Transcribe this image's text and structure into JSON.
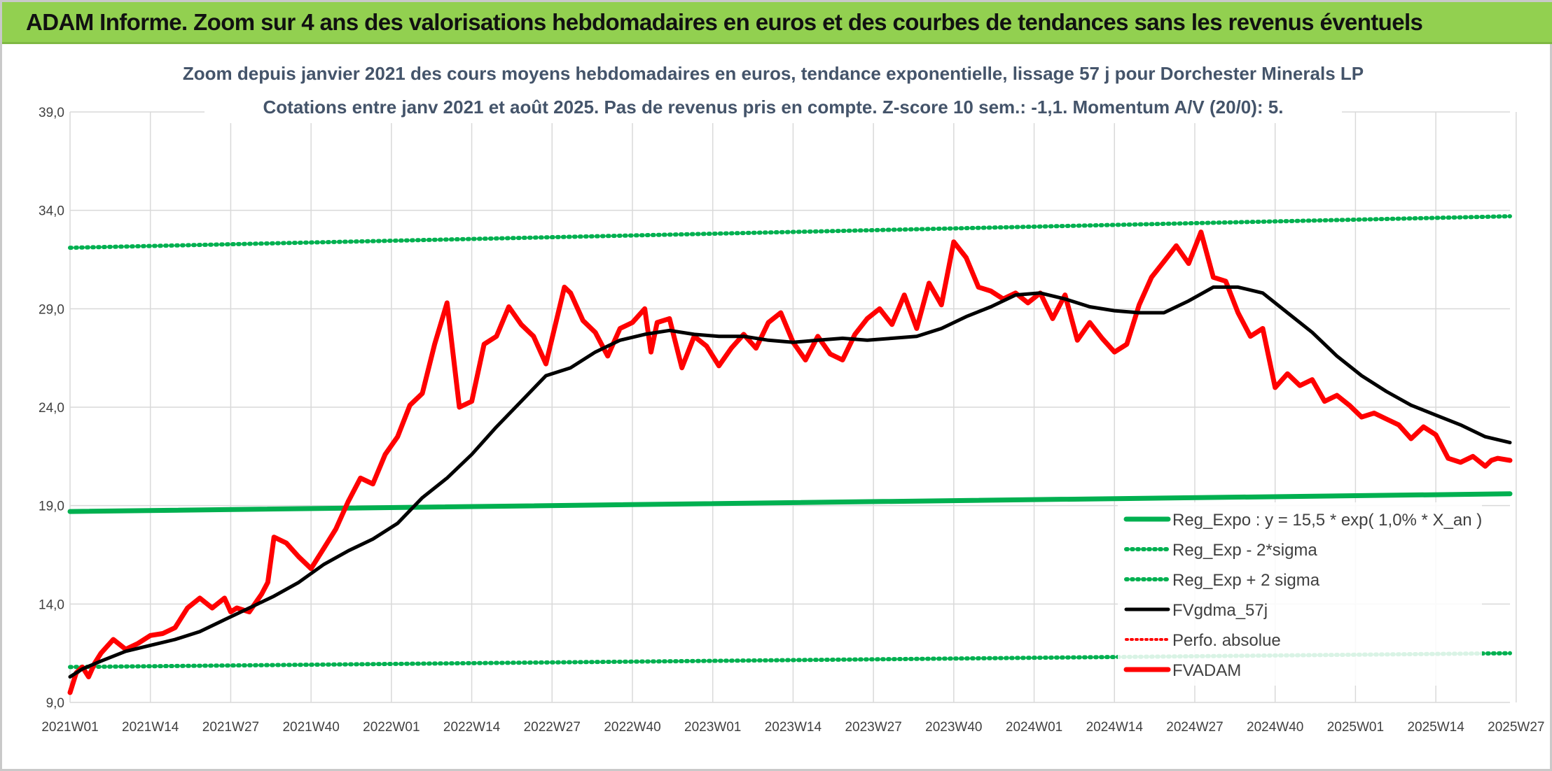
{
  "header": {
    "title": "ADAM Informe. Zoom sur 4 ans des valorisations hebdomadaires en euros et des courbes de tendances sans les revenus éventuels"
  },
  "colors": {
    "banner": "#92d050",
    "green": "#00b050",
    "black": "#000000",
    "red": "#ff0000",
    "grid": "#d9d9d9"
  },
  "chart_data": {
    "type": "line",
    "title": "Zoom depuis janvier 2021 des cours moyens hebdomadaires en euros, tendance exponentielle, lissage 57 j pour Dorchester Minerals LP",
    "subtitle": "Cotations entre janv 2021 et août 2025. Pas de revenus pris en compte. Z-score 10 sem.: -1,1. Momentum A/V (20/0): 5.",
    "xlabel": "",
    "ylabel": "",
    "ylim": [
      9,
      39
    ],
    "y_ticks": [
      "9,0",
      "14,0",
      "19,0",
      "24,0",
      "29,0",
      "34,0",
      "39,0"
    ],
    "x_ticks": [
      "2021W01",
      "2021W14",
      "2021W27",
      "2021W40",
      "2022W01",
      "2022W14",
      "2022W27",
      "2022W40",
      "2023W01",
      "2023W14",
      "2023W27",
      "2023W40",
      "2024W01",
      "2024W14",
      "2024W27",
      "2024W40",
      "2025W01",
      "2025W14",
      "2025W27"
    ],
    "grid": true,
    "legend_position": "bottom-right",
    "series": [
      {
        "name": "Reg_Expo : y = 15,5 * exp( 1,0% *  X_an )",
        "style": "solid",
        "color": "#00b050",
        "start": 18.7,
        "end": 19.6
      },
      {
        "name": "Reg_Exp - 2*sigma",
        "style": "dotted",
        "color": "#00b050",
        "start": 10.8,
        "end": 11.5
      },
      {
        "name": "Reg_Exp + 2 sigma",
        "style": "dotted",
        "color": "#00b050",
        "start": 32.1,
        "end": 33.7
      },
      {
        "name": "FVgdma_57j",
        "style": "solid",
        "color": "#000000",
        "x": [
          1,
          3,
          6,
          10,
          14,
          18,
          22,
          26,
          30,
          34,
          38,
          42,
          46,
          50,
          54,
          58,
          62,
          66,
          70,
          74,
          78,
          82,
          86,
          90,
          94,
          98,
          102,
          106,
          110,
          114,
          118,
          122,
          126,
          130,
          134,
          138,
          142,
          146,
          150,
          154,
          158,
          162,
          166,
          170,
          174,
          178,
          182,
          186,
          190,
          194,
          198,
          202,
          206,
          210,
          214,
          218,
          222,
          226,
          230,
          234
        ],
        "values": [
          10.3,
          10.7,
          11.1,
          11.6,
          11.9,
          12.2,
          12.6,
          13.2,
          13.8,
          14.4,
          15.1,
          16.0,
          16.7,
          17.3,
          18.1,
          19.4,
          20.4,
          21.6,
          23.0,
          24.3,
          25.6,
          26.0,
          26.8,
          27.4,
          27.7,
          27.9,
          27.7,
          27.6,
          27.6,
          27.4,
          27.3,
          27.4,
          27.5,
          27.4,
          27.5,
          27.6,
          28.0,
          28.6,
          29.1,
          29.7,
          29.8,
          29.5,
          29.1,
          28.9,
          28.8,
          28.8,
          29.4,
          30.1,
          30.1,
          29.8,
          28.8,
          27.8,
          26.6,
          25.6,
          24.8,
          24.1,
          23.6,
          23.1,
          22.5,
          22.2
        ]
      },
      {
        "name": "Perfo. absolue",
        "style": "dotted",
        "color": "#ff0000",
        "values": []
      },
      {
        "name": "FVADAM",
        "style": "solid",
        "color": "#ff0000",
        "x": [
          1,
          2,
          3,
          4,
          5,
          6,
          8,
          10,
          12,
          14,
          16,
          18,
          20,
          22,
          24,
          26,
          27,
          28,
          30,
          32,
          33,
          34,
          36,
          38,
          40,
          42,
          44,
          46,
          48,
          50,
          52,
          54,
          56,
          58,
          60,
          62,
          64,
          66,
          68,
          70,
          72,
          74,
          76,
          78,
          80,
          81,
          82,
          84,
          86,
          88,
          90,
          92,
          94,
          95,
          96,
          98,
          100,
          102,
          104,
          106,
          108,
          110,
          112,
          114,
          116,
          118,
          120,
          122,
          124,
          126,
          128,
          130,
          132,
          134,
          136,
          138,
          140,
          142,
          144,
          146,
          148,
          150,
          152,
          154,
          156,
          158,
          160,
          162,
          164,
          166,
          168,
          170,
          172,
          174,
          176,
          178,
          180,
          182,
          184,
          186,
          188,
          190,
          192,
          194,
          196,
          198,
          200,
          202,
          204,
          206,
          208,
          210,
          212,
          214,
          216,
          218,
          220,
          222,
          224,
          226,
          228,
          230,
          231,
          232,
          234
        ],
        "values": [
          9.5,
          10.5,
          10.8,
          10.3,
          11.0,
          11.5,
          12.2,
          11.7,
          12.0,
          12.4,
          12.5,
          12.8,
          13.8,
          14.3,
          13.8,
          14.3,
          13.6,
          13.8,
          13.6,
          14.5,
          15.1,
          17.4,
          17.1,
          16.4,
          15.8,
          16.8,
          17.8,
          19.2,
          20.4,
          20.1,
          21.6,
          22.5,
          24.1,
          24.7,
          27.2,
          29.3,
          24.0,
          24.3,
          27.2,
          27.6,
          29.1,
          28.2,
          27.6,
          26.2,
          28.8,
          30.1,
          29.8,
          28.4,
          27.8,
          26.6,
          28.0,
          28.3,
          29.0,
          26.8,
          28.3,
          28.5,
          26.0,
          27.6,
          27.1,
          26.1,
          27.0,
          27.7,
          27.0,
          28.3,
          28.8,
          27.3,
          26.4,
          27.6,
          26.7,
          26.4,
          27.7,
          28.5,
          29.0,
          28.2,
          29.7,
          28.0,
          30.3,
          29.2,
          32.4,
          31.6,
          30.1,
          29.9,
          29.5,
          29.8,
          29.3,
          29.8,
          28.5,
          29.7,
          27.4,
          28.3,
          27.5,
          26.8,
          27.2,
          29.2,
          30.6,
          31.4,
          32.2,
          31.3,
          32.9,
          30.6,
          30.4,
          28.8,
          27.6,
          28.0,
          25.0,
          25.7,
          25.1,
          25.4,
          24.3,
          24.6,
          24.1,
          23.5,
          23.7,
          23.4,
          23.1,
          22.4,
          23.0,
          22.6,
          21.4,
          21.2,
          21.5,
          21.0,
          21.3,
          21.4,
          21.3
        ]
      }
    ]
  }
}
